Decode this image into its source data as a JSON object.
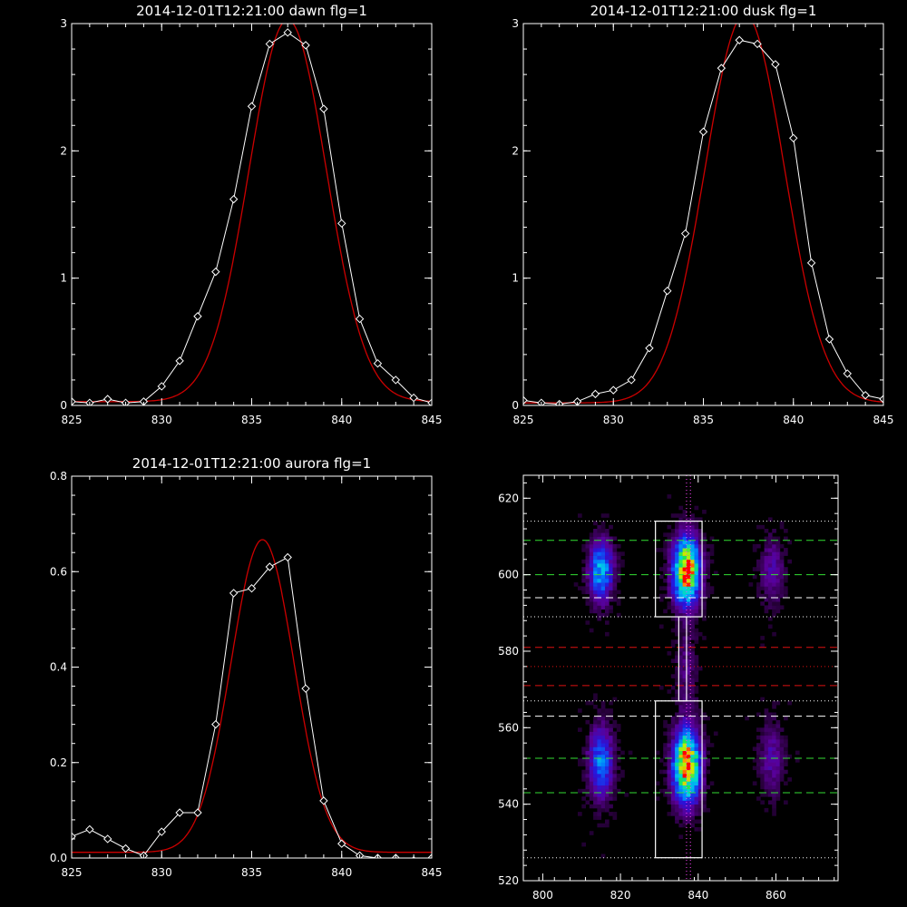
{
  "chart_data": [
    {
      "type": "line",
      "title": "2014-12-01T12:21:00 dawn flg=1",
      "xlim": [
        825,
        845
      ],
      "ylim": [
        0,
        3
      ],
      "xticks": [
        "825",
        "830",
        "835",
        "840",
        "845"
      ],
      "yticks": [
        "0",
        "1",
        "2",
        "3"
      ],
      "series": [
        {
          "kind": "data",
          "color": "#ffffff",
          "x": [
            825,
            826,
            827,
            828,
            829,
            830,
            831,
            832,
            833,
            834,
            835,
            836,
            837,
            838,
            839,
            840,
            841,
            842,
            843,
            844,
            845
          ],
          "y": [
            0.03,
            0.02,
            0.05,
            0.02,
            0.03,
            0.15,
            0.35,
            0.7,
            1.05,
            1.62,
            2.35,
            2.84,
            2.93,
            2.83,
            2.33,
            1.43,
            0.68,
            0.33,
            0.2,
            0.06,
            0.02
          ]
        },
        {
          "kind": "fit",
          "color": "#cc0000",
          "center": 837.0,
          "sigma": 2.15,
          "amplitude": 3.0,
          "offset": 0.03
        }
      ]
    },
    {
      "type": "line",
      "title": "2014-12-01T12:21:00 dusk flg=1",
      "xlim": [
        825,
        845
      ],
      "ylim": [
        0,
        3
      ],
      "xticks": [
        "825",
        "830",
        "835",
        "840",
        "845"
      ],
      "yticks": [
        "0",
        "1",
        "2",
        "3"
      ],
      "series": [
        {
          "kind": "data",
          "color": "#ffffff",
          "x": [
            825,
            826,
            827,
            828,
            829,
            830,
            831,
            832,
            833,
            834,
            835,
            836,
            837,
            838,
            839,
            840,
            841,
            842,
            843,
            844,
            845
          ],
          "y": [
            0.04,
            0.02,
            0.01,
            0.03,
            0.09,
            0.12,
            0.2,
            0.45,
            0.9,
            1.35,
            2.15,
            2.65,
            2.87,
            2.84,
            2.68,
            2.1,
            1.12,
            0.52,
            0.25,
            0.08,
            0.05
          ]
        },
        {
          "kind": "fit",
          "color": "#cc0000",
          "center": 837.3,
          "sigma": 2.2,
          "amplitude": 3.05,
          "offset": 0.02
        }
      ]
    },
    {
      "type": "line",
      "title": "2014-12-01T12:21:00 aurora flg=1",
      "xlim": [
        825,
        845
      ],
      "ylim": [
        0,
        0.8
      ],
      "xticks": [
        "825",
        "830",
        "835",
        "840",
        "845"
      ],
      "yticks": [
        "0.0",
        "0.2",
        "0.4",
        "0.6",
        "0.8"
      ],
      "series": [
        {
          "kind": "data",
          "color": "#ffffff",
          "x": [
            825,
            826,
            827,
            828,
            829,
            830,
            831,
            832,
            833,
            834,
            835,
            836,
            837,
            838,
            839,
            840,
            841,
            842,
            843,
            844,
            845
          ],
          "y": [
            0.045,
            0.06,
            0.04,
            0.02,
            0.005,
            0.055,
            0.095,
            0.095,
            0.28,
            0.555,
            0.565,
            0.61,
            0.63,
            0.355,
            0.12,
            0.03,
            0.005,
            0.0,
            0.0,
            -0.005,
            0.0
          ]
        },
        {
          "kind": "fit",
          "color": "#cc0000",
          "center": 835.6,
          "sigma": 1.75,
          "amplitude": 0.655,
          "offset": 0.012
        }
      ]
    },
    {
      "type": "heatmap",
      "title": "",
      "xlim": [
        795,
        876
      ],
      "ylim": [
        520,
        626
      ],
      "xticks": [
        "800",
        "820",
        "840",
        "860"
      ],
      "yticks": [
        "520",
        "540",
        "560",
        "580",
        "600",
        "620"
      ],
      "blobs": [
        {
          "x": 837,
          "y": 601,
          "sx": 2.2,
          "sy": 5.5,
          "amp": 1.0
        },
        {
          "x": 837,
          "y": 550,
          "sx": 2.2,
          "sy": 6.0,
          "amp": 1.0
        },
        {
          "x": 815,
          "y": 601,
          "sx": 2.0,
          "sy": 5.0,
          "amp": 0.48
        },
        {
          "x": 815,
          "y": 551,
          "sx": 2.0,
          "sy": 6.0,
          "amp": 0.4
        },
        {
          "x": 859,
          "y": 601,
          "sx": 2.0,
          "sy": 5.5,
          "amp": 0.16
        },
        {
          "x": 859,
          "y": 552,
          "sx": 2.0,
          "sy": 6.0,
          "amp": 0.16
        },
        {
          "x": 837,
          "y": 575,
          "sx": 1.8,
          "sy": 8.0,
          "amp": 0.1
        }
      ],
      "hlines": [
        {
          "y": 614,
          "style": "dotted",
          "color": "#ffffff"
        },
        {
          "y": 609,
          "style": "dashed",
          "color": "#33dd33"
        },
        {
          "y": 600,
          "style": "dashed",
          "color": "#33dd33"
        },
        {
          "y": 594,
          "style": "dashed",
          "color": "#ffffff"
        },
        {
          "y": 589,
          "style": "dotted",
          "color": "#ffffff"
        },
        {
          "y": 581,
          "style": "dashed",
          "color": "#dd1111"
        },
        {
          "y": 576,
          "style": "dotted",
          "color": "#dd1111"
        },
        {
          "y": 571,
          "style": "dashed",
          "color": "#dd1111"
        },
        {
          "y": 567,
          "style": "dotted",
          "color": "#ffffff"
        },
        {
          "y": 563,
          "style": "dashed",
          "color": "#ffffff"
        },
        {
          "y": 552,
          "style": "dashed",
          "color": "#33dd33"
        },
        {
          "y": 543,
          "style": "dashed",
          "color": "#33dd33"
        },
        {
          "y": 526,
          "style": "dotted",
          "color": "#ffffff"
        }
      ],
      "vlines": [
        {
          "x": 837,
          "style": "dotted",
          "color": "#ff44ff"
        },
        {
          "x": 838,
          "style": "dotted",
          "color": "#ff44ff"
        }
      ],
      "boxes": [
        {
          "x0": 829,
          "x1": 841,
          "y0": 589,
          "y1": 614
        },
        {
          "x0": 829,
          "x1": 841,
          "y0": 526,
          "y1": 567
        },
        {
          "x0": 835,
          "x1": 837,
          "y0": 567,
          "y1": 589
        }
      ]
    }
  ]
}
